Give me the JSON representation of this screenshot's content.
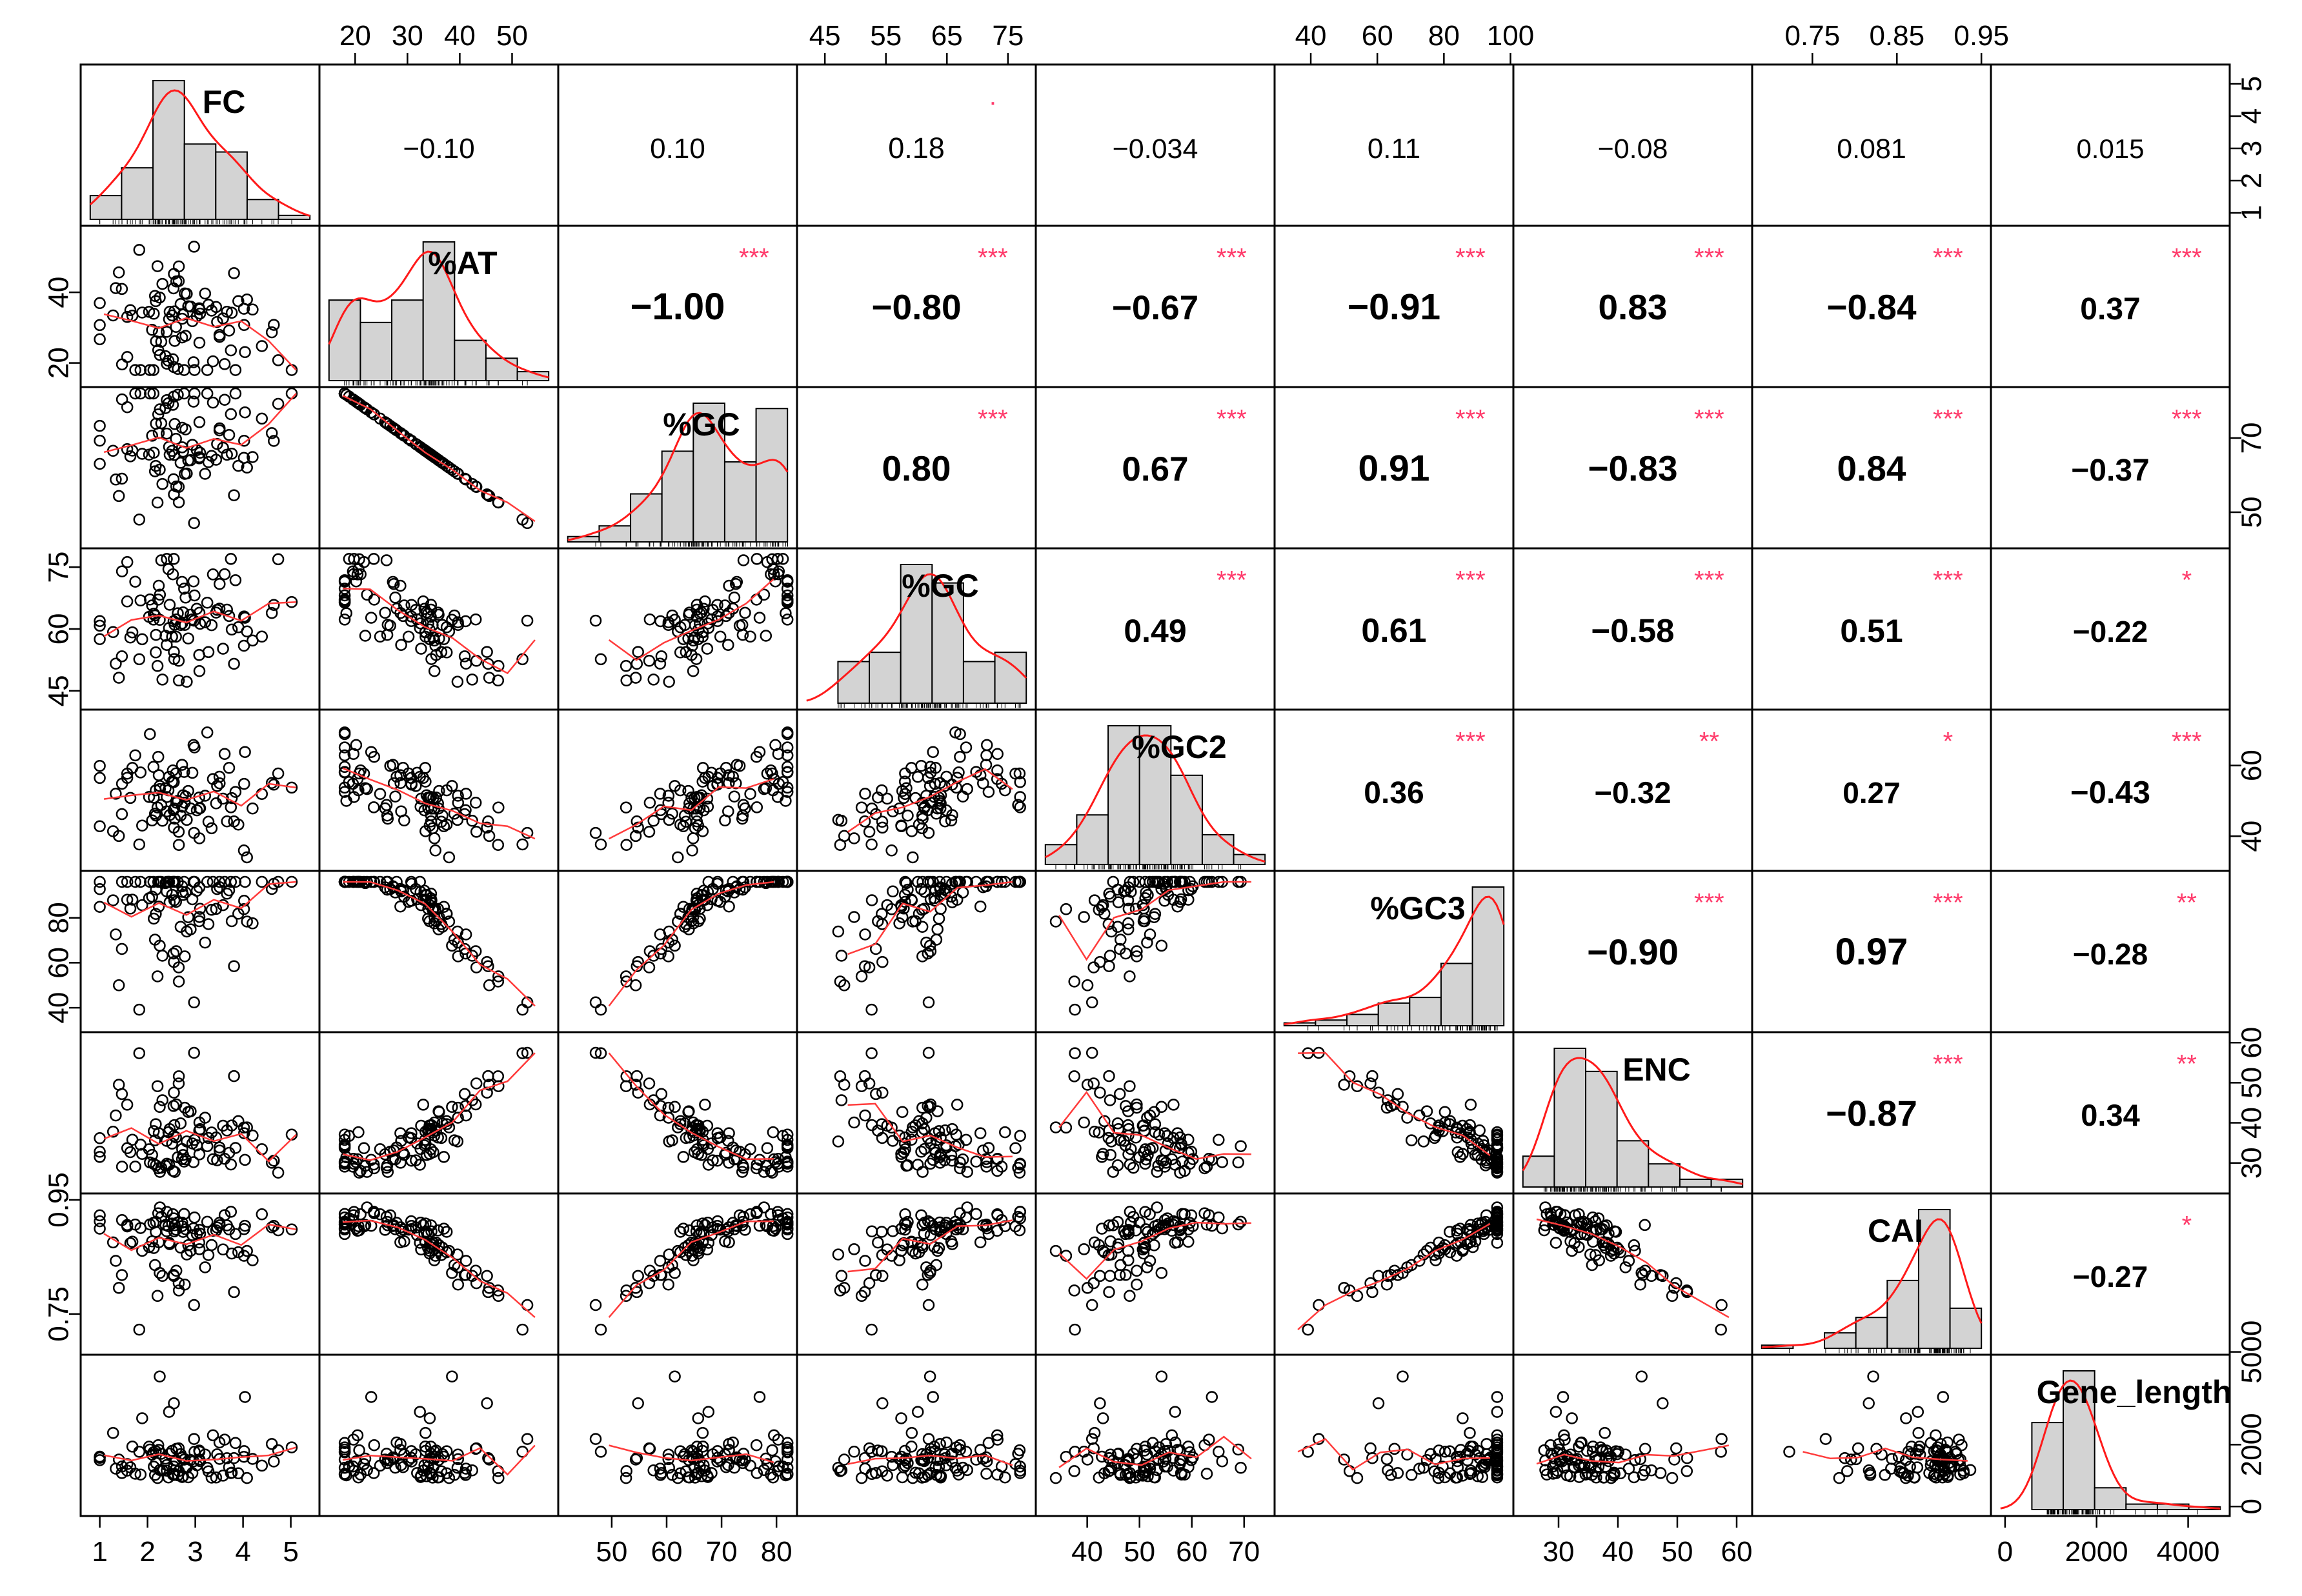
{
  "chart_data": {
    "type": "scatter",
    "variables": [
      "FC",
      "%AT",
      "%GC",
      "%GC",
      "%GC2",
      "%GC3",
      "ENC",
      "CAI",
      "Gene_length"
    ],
    "correlations": [
      [
        null,
        "−0.10",
        "0.10",
        "0.18",
        "−0.034",
        "0.11",
        "−0.08",
        "0.081",
        "0.015"
      ],
      [
        null,
        null,
        "−1.00",
        "−0.80",
        "−0.67",
        "−0.91",
        "0.83",
        "−0.84",
        "0.37"
      ],
      [
        null,
        null,
        null,
        "0.80",
        "0.67",
        "0.91",
        "−0.83",
        "0.84",
        "−0.37"
      ],
      [
        null,
        null,
        null,
        null,
        "0.49",
        "0.61",
        "−0.58",
        "0.51",
        "−0.22"
      ],
      [
        null,
        null,
        null,
        null,
        null,
        "0.36",
        "−0.32",
        "0.27",
        "−0.43"
      ],
      [
        null,
        null,
        null,
        null,
        null,
        null,
        "−0.90",
        "0.97",
        "−0.28"
      ],
      [
        null,
        null,
        null,
        null,
        null,
        null,
        null,
        "−0.87",
        "0.34"
      ],
      [
        null,
        null,
        null,
        null,
        null,
        null,
        null,
        null,
        "−0.27"
      ]
    ],
    "significance": [
      [
        null,
        "",
        "",
        ".",
        "",
        "",
        "",
        "",
        ""
      ],
      [
        null,
        null,
        "***",
        "***",
        "***",
        "***",
        "***",
        "***",
        "***"
      ],
      [
        null,
        null,
        null,
        "***",
        "***",
        "***",
        "***",
        "***",
        "***"
      ],
      [
        null,
        null,
        null,
        null,
        "***",
        "***",
        "***",
        "***",
        "*"
      ],
      [
        null,
        null,
        null,
        null,
        null,
        "***",
        "**",
        "*",
        "***"
      ],
      [
        null,
        null,
        null,
        null,
        null,
        null,
        "***",
        "***",
        "**"
      ],
      [
        null,
        null,
        null,
        null,
        null,
        null,
        null,
        "***",
        "**"
      ],
      [
        null,
        null,
        null,
        null,
        null,
        null,
        null,
        null,
        "*"
      ]
    ],
    "ranges": [
      [
        0.8,
        5.4
      ],
      [
        15,
        57
      ],
      [
        42,
        82
      ],
      [
        42,
        78
      ],
      [
        32,
        74
      ],
      [
        32,
        98
      ],
      [
        24,
        61
      ],
      [
        0.69,
        0.95
      ],
      [
        -100,
        4700
      ]
    ],
    "top_ticks": [
      {
        "col": 1,
        "values": [
          20,
          30,
          40,
          50
        ],
        "labels": [
          "20",
          "30",
          "40",
          "50"
        ]
      },
      {
        "col": 3,
        "values": [
          45,
          55,
          65,
          75
        ],
        "labels": [
          "45",
          "55",
          "65",
          "75"
        ]
      },
      {
        "col": 5,
        "values": [
          40,
          60,
          80,
          100
        ],
        "labels": [
          "40",
          "60",
          "80",
          "100"
        ]
      },
      {
        "col": 7,
        "values": [
          0.75,
          0.85,
          0.95
        ],
        "labels": [
          "0.75",
          "0.85",
          "0.95"
        ]
      }
    ],
    "bottom_ticks": [
      {
        "col": 0,
        "values": [
          1,
          2,
          3,
          4,
          5
        ],
        "labels": [
          "1",
          "2",
          "3",
          "4",
          "5"
        ]
      },
      {
        "col": 2,
        "values": [
          50,
          60,
          70,
          80
        ],
        "labels": [
          "50",
          "60",
          "70",
          "80"
        ]
      },
      {
        "col": 4,
        "values": [
          40,
          50,
          60,
          70
        ],
        "labels": [
          "40",
          "50",
          "60",
          "70"
        ]
      },
      {
        "col": 6,
        "values": [
          30,
          40,
          50,
          60
        ],
        "labels": [
          "30",
          "40",
          "50",
          "60"
        ]
      },
      {
        "col": 8,
        "values": [
          0,
          2000,
          4000
        ],
        "labels": [
          "0",
          "2000",
          "4000"
        ]
      }
    ],
    "left_ticks": [
      {
        "row": 1,
        "values": [
          20,
          40
        ],
        "labels": [
          "20",
          "40"
        ]
      },
      {
        "row": 3,
        "values": [
          45,
          60,
          75
        ],
        "labels": [
          "45",
          "60",
          "75"
        ]
      },
      {
        "row": 5,
        "values": [
          40,
          60,
          80
        ],
        "labels": [
          "40",
          "60",
          "80"
        ]
      },
      {
        "row": 7,
        "values": [
          0.75,
          0.95
        ],
        "labels": [
          "0.75",
          "0.95"
        ]
      }
    ],
    "right_ticks": [
      {
        "row": 0,
        "values": [
          1,
          2,
          3,
          4,
          5
        ],
        "labels": [
          "1",
          "2",
          "3",
          "4",
          "5"
        ]
      },
      {
        "row": 2,
        "values": [
          50,
          70
        ],
        "labels": [
          "50",
          "70"
        ]
      },
      {
        "row": 4,
        "values": [
          40,
          60
        ],
        "labels": [
          "40",
          "60"
        ]
      },
      {
        "row": 6,
        "values": [
          30,
          40,
          50,
          60
        ],
        "labels": [
          "30",
          "40",
          "50",
          "60"
        ]
      },
      {
        "row": 8,
        "values": [
          0,
          2000,
          5000
        ],
        "labels": [
          "0",
          "2000",
          "5000"
        ]
      }
    ],
    "grid": false,
    "colors": {
      "point": "#000000",
      "smooth": "#ff3b3b",
      "star": "#ff3b6b",
      "hist_fill": "#d3d3d3",
      "density": "#ff1a1a"
    }
  }
}
